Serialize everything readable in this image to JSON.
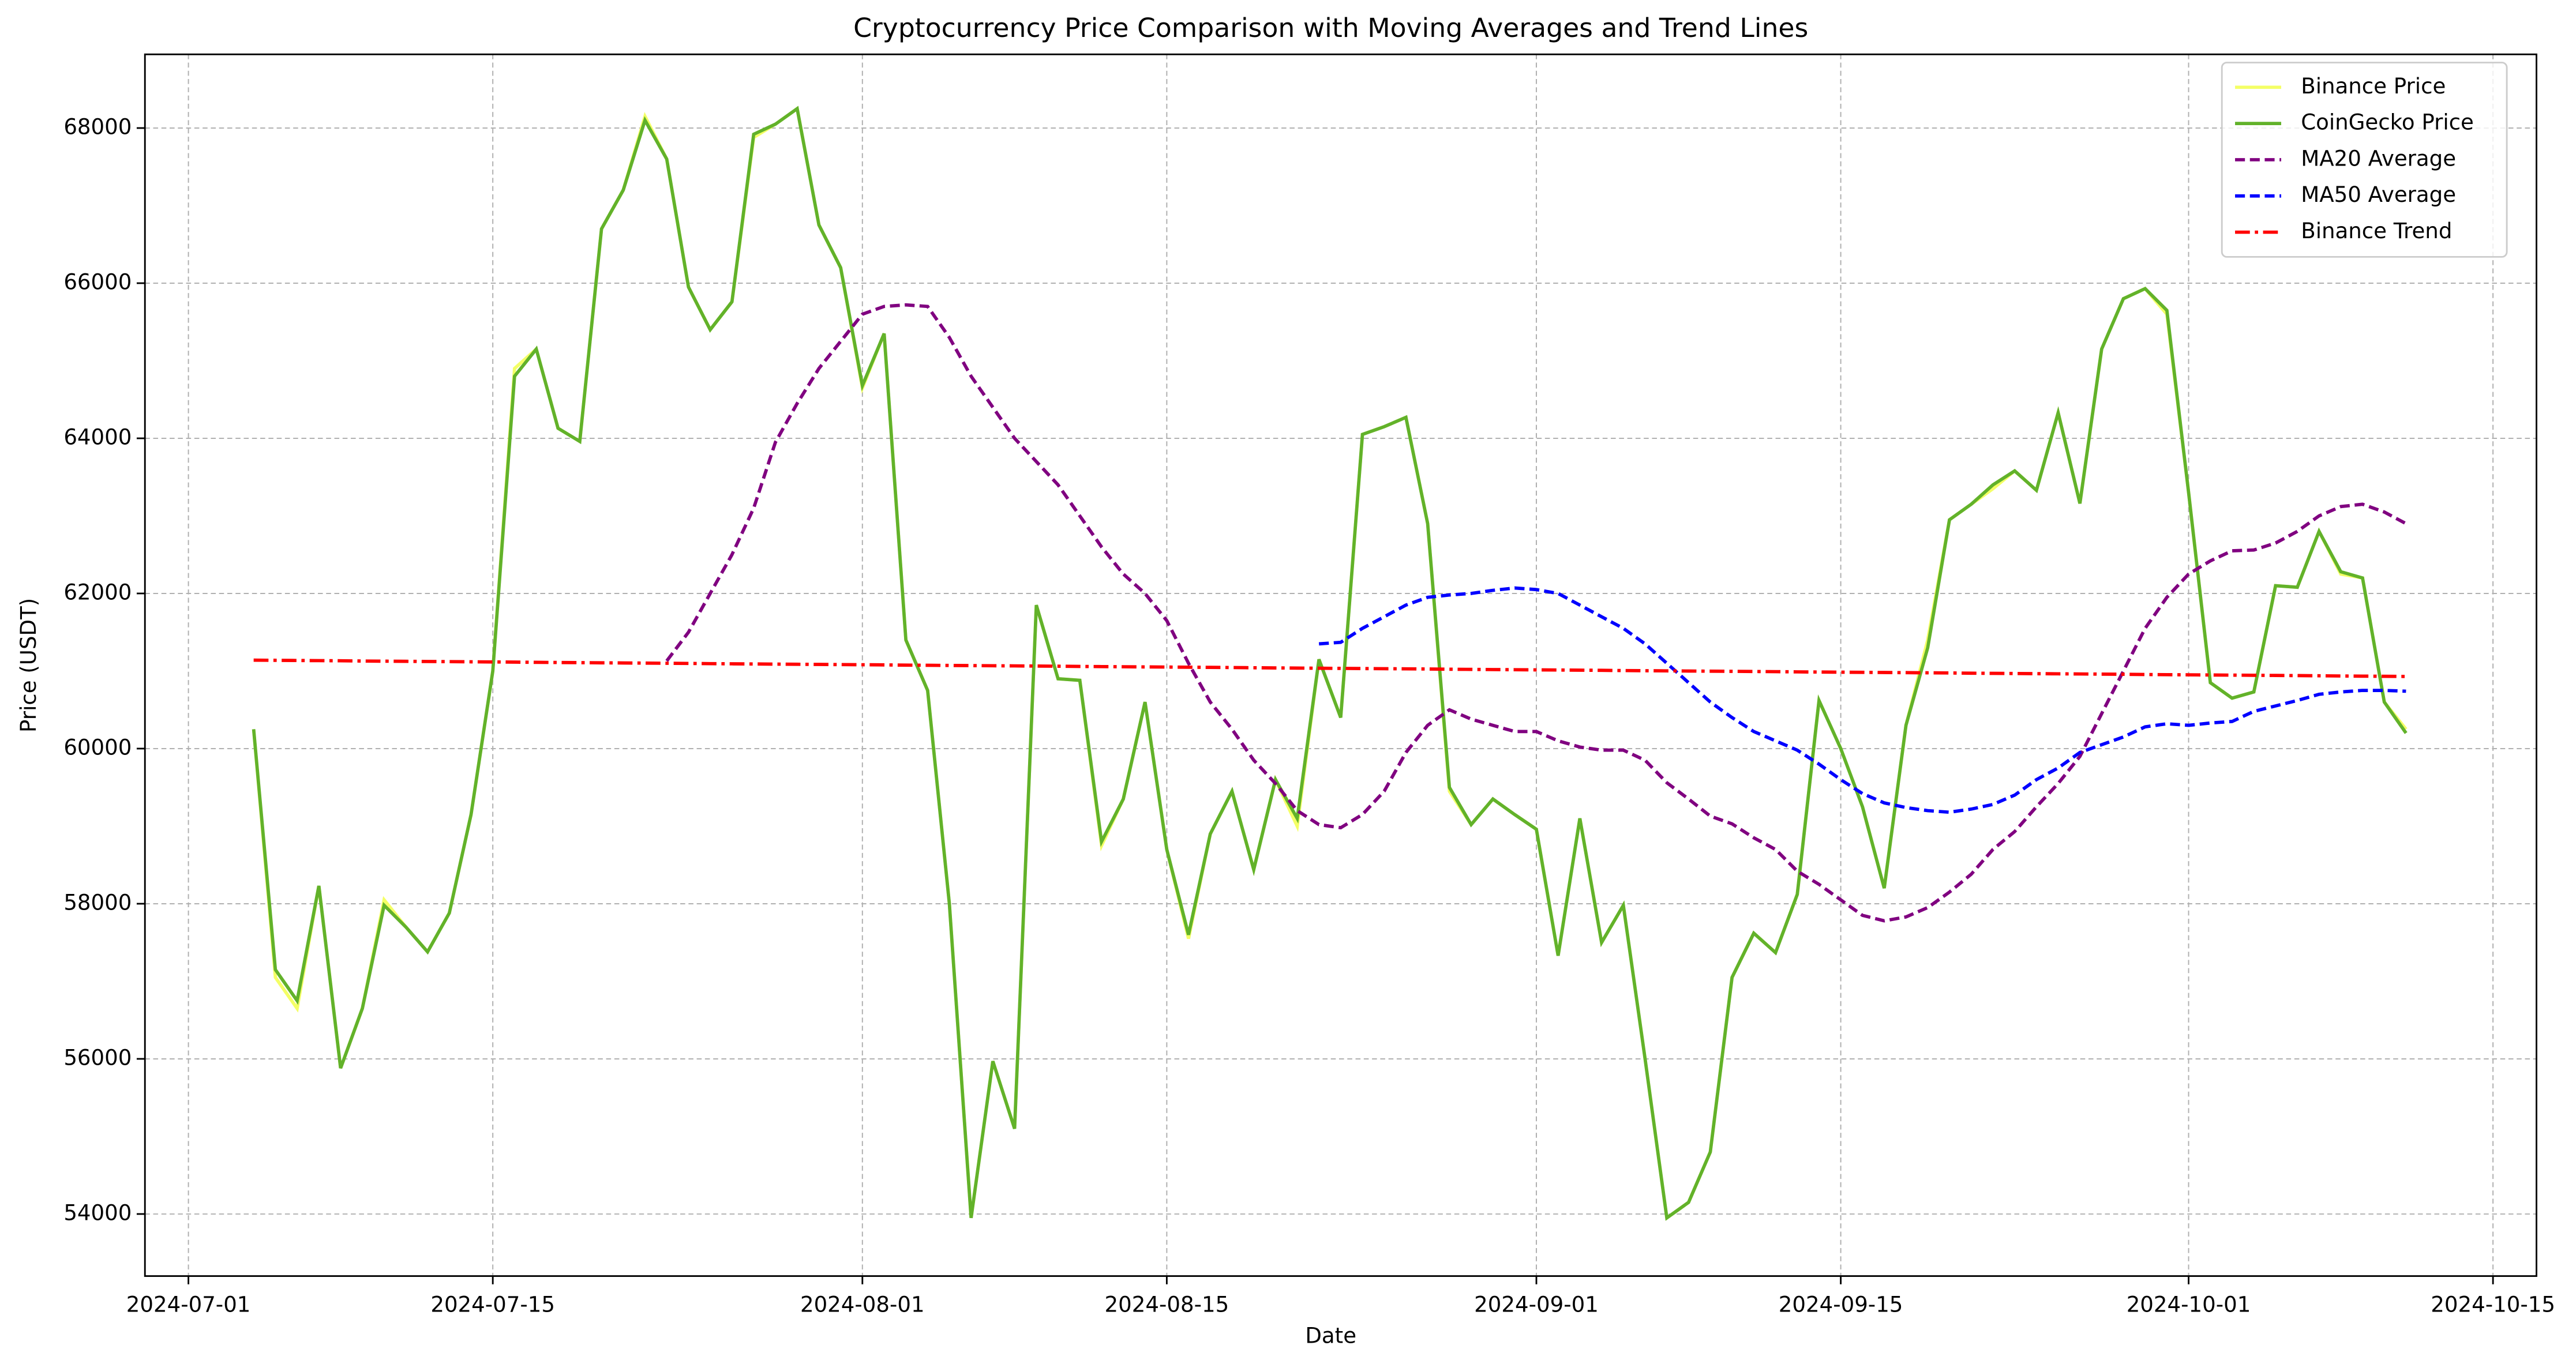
{
  "chart_data": {
    "type": "line",
    "title": "Cryptocurrency Price Comparison with Moving Averages and Trend Lines",
    "xlabel": "Date",
    "ylabel": "Price (USDT)",
    "x": [
      "2024-07-04",
      "2024-07-05",
      "2024-07-06",
      "2024-07-07",
      "2024-07-08",
      "2024-07-09",
      "2024-07-10",
      "2024-07-11",
      "2024-07-12",
      "2024-07-13",
      "2024-07-14",
      "2024-07-15",
      "2024-07-16",
      "2024-07-17",
      "2024-07-18",
      "2024-07-19",
      "2024-07-20",
      "2024-07-21",
      "2024-07-22",
      "2024-07-23",
      "2024-07-24",
      "2024-07-25",
      "2024-07-26",
      "2024-07-27",
      "2024-07-28",
      "2024-07-29",
      "2024-07-30",
      "2024-07-31",
      "2024-08-01",
      "2024-08-02",
      "2024-08-03",
      "2024-08-04",
      "2024-08-05",
      "2024-08-06",
      "2024-08-07",
      "2024-08-08",
      "2024-08-09",
      "2024-08-10",
      "2024-08-11",
      "2024-08-12",
      "2024-08-13",
      "2024-08-14",
      "2024-08-15",
      "2024-08-16",
      "2024-08-17",
      "2024-08-18",
      "2024-08-19",
      "2024-08-20",
      "2024-08-21",
      "2024-08-22",
      "2024-08-23",
      "2024-08-24",
      "2024-08-25",
      "2024-08-26",
      "2024-08-27",
      "2024-08-28",
      "2024-08-29",
      "2024-08-30",
      "2024-08-31",
      "2024-09-01",
      "2024-09-02",
      "2024-09-03",
      "2024-09-04",
      "2024-09-05",
      "2024-09-06",
      "2024-09-07",
      "2024-09-08",
      "2024-09-09",
      "2024-09-10",
      "2024-09-11",
      "2024-09-12",
      "2024-09-13",
      "2024-09-14",
      "2024-09-15",
      "2024-09-16",
      "2024-09-17",
      "2024-09-18",
      "2024-09-19",
      "2024-09-20",
      "2024-09-21",
      "2024-09-22",
      "2024-09-23",
      "2024-09-24",
      "2024-09-25",
      "2024-09-26",
      "2024-09-27",
      "2024-09-28",
      "2024-09-29",
      "2024-09-30",
      "2024-10-01",
      "2024-10-02",
      "2024-10-03",
      "2024-10-04",
      "2024-10-05",
      "2024-10-06",
      "2024-10-07",
      "2024-10-08",
      "2024-10-09",
      "2024-10-10",
      "2024-10-11"
    ],
    "series": [
      {
        "name": "Binance Price",
        "color": "#f4ff66",
        "dash": "solid",
        "values": [
          60250,
          57050,
          56650,
          58230,
          55880,
          56650,
          58050,
          57700,
          57380,
          57880,
          59150,
          61000,
          64900,
          65150,
          64130,
          63960,
          66700,
          67200,
          68150,
          67600,
          65950,
          65400,
          65760,
          67880,
          68050,
          68250,
          66750,
          66200,
          64650,
          65350,
          61400,
          60750,
          58000,
          53950,
          55970,
          55100,
          61850,
          60900,
          60880,
          58750,
          59350,
          60600,
          58700,
          57550,
          58900,
          59450,
          58440,
          59600,
          59000,
          61150,
          60400,
          64050,
          64150,
          64270,
          62900,
          59450,
          59020,
          59350,
          59150,
          58960,
          57330,
          59100,
          57500,
          57980,
          56000,
          53950,
          54150,
          54800,
          57050,
          57620,
          57370,
          58120,
          60620,
          60000,
          59250,
          58200,
          60300,
          61400,
          62950,
          63150,
          63350,
          63580,
          63330,
          64330,
          63160,
          65150,
          65800,
          65930,
          65600,
          63300,
          60850,
          60650,
          60730,
          62100,
          62080,
          62800,
          62250,
          62200,
          60600,
          60250
        ]
      },
      {
        "name": "CoinGecko Price",
        "color": "#62b22a",
        "dash": "solid",
        "values": [
          60250,
          57150,
          56750,
          58230,
          55880,
          56650,
          57980,
          57700,
          57380,
          57880,
          59150,
          61000,
          64800,
          65150,
          64130,
          63960,
          66700,
          67200,
          68100,
          67600,
          65950,
          65400,
          65760,
          67920,
          68050,
          68250,
          66750,
          66200,
          64680,
          65350,
          61400,
          60750,
          58000,
          53950,
          55970,
          55100,
          61850,
          60900,
          60880,
          58800,
          59350,
          60600,
          58700,
          57600,
          58900,
          59450,
          58440,
          59600,
          59100,
          61150,
          60400,
          64050,
          64150,
          64270,
          62900,
          59500,
          59020,
          59350,
          59150,
          58960,
          57330,
          59100,
          57500,
          57980,
          56000,
          53950,
          54150,
          54800,
          57050,
          57620,
          57370,
          58120,
          60620,
          60000,
          59250,
          58200,
          60300,
          61300,
          62950,
          63150,
          63400,
          63580,
          63330,
          64330,
          63160,
          65150,
          65800,
          65930,
          65650,
          63300,
          60850,
          60650,
          60730,
          62100,
          62080,
          62800,
          62280,
          62200,
          60600,
          60200
        ]
      },
      {
        "name": "MA20 Average",
        "color": "#800080",
        "dash": "dashed",
        "values": [
          null,
          null,
          null,
          null,
          null,
          null,
          null,
          null,
          null,
          null,
          null,
          null,
          null,
          null,
          null,
          null,
          null,
          null,
          null,
          61130,
          61500,
          62000,
          62500,
          63100,
          63950,
          64450,
          64900,
          65250,
          65600,
          65700,
          65720,
          65700,
          65300,
          64800,
          64400,
          64000,
          63700,
          63400,
          63000,
          62600,
          62250,
          62000,
          61650,
          61100,
          60600,
          60250,
          59850,
          59550,
          59200,
          59020,
          58980,
          59150,
          59450,
          59950,
          60300,
          60500,
          60380,
          60300,
          60220,
          60220,
          60100,
          60020,
          59980,
          59980,
          59850,
          59560,
          59350,
          59130,
          59030,
          58850,
          58700,
          58420,
          58250,
          58050,
          57850,
          57780,
          57830,
          57950,
          58150,
          58380,
          58700,
          58930,
          59250,
          59550,
          59900,
          60450,
          61000,
          61550,
          61950,
          62250,
          62420,
          62550,
          62560,
          62650,
          62800,
          63000,
          63120,
          63150,
          63050,
          62900
        ]
      },
      {
        "name": "MA50 Average",
        "color": "#0000ff",
        "dash": "dashed",
        "values": [
          null,
          null,
          null,
          null,
          null,
          null,
          null,
          null,
          null,
          null,
          null,
          null,
          null,
          null,
          null,
          null,
          null,
          null,
          null,
          null,
          null,
          null,
          null,
          null,
          null,
          null,
          null,
          null,
          null,
          null,
          null,
          null,
          null,
          null,
          null,
          null,
          null,
          null,
          null,
          null,
          null,
          null,
          null,
          null,
          null,
          null,
          null,
          null,
          null,
          61350,
          61370,
          61550,
          61700,
          61850,
          61950,
          61980,
          62000,
          62040,
          62070,
          62050,
          62000,
          61850,
          61700,
          61550,
          61350,
          61100,
          60850,
          60600,
          60400,
          60220,
          60100,
          59980,
          59800,
          59600,
          59420,
          59300,
          59240,
          59200,
          59180,
          59220,
          59280,
          59400,
          59600,
          59750,
          59950,
          60050,
          60150,
          60280,
          60320,
          60300,
          60330,
          60350,
          60480,
          60550,
          60620,
          60700,
          60730,
          60750,
          60750,
          60740
        ]
      },
      {
        "name": "Binance Trend",
        "color": "#ff0000",
        "dash": "dashdot",
        "values": [
          61140,
          61138,
          61136,
          61134,
          61132,
          61129,
          61127,
          61125,
          61123,
          61121,
          61119,
          61117,
          61115,
          61112,
          61110,
          61108,
          61106,
          61104,
          61102,
          61100,
          61098,
          61095,
          61093,
          61091,
          61089,
          61087,
          61085,
          61083,
          61081,
          61079,
          61076,
          61074,
          61072,
          61070,
          61068,
          61066,
          61064,
          61062,
          61059,
          61057,
          61055,
          61053,
          61051,
          61049,
          61047,
          61045,
          61042,
          61040,
          61038,
          61036,
          61034,
          61032,
          61030,
          61028,
          61026,
          61023,
          61021,
          61019,
          61017,
          61015,
          61013,
          61011,
          61009,
          61006,
          61004,
          61002,
          61000,
          60998,
          60996,
          60994,
          60992,
          60989,
          60987,
          60985,
          60983,
          60981,
          60979,
          60977,
          60975,
          60972,
          60970,
          60968,
          60966,
          60964,
          60962,
          60960,
          60958,
          60955,
          60953,
          60951,
          60949,
          60947,
          60945,
          60943,
          60941,
          60939,
          60936,
          60934,
          60932,
          60930
        ]
      }
    ],
    "xlim": [
      "2024-06-29",
      "2024-10-17"
    ],
    "xticks": [
      "2024-07-01",
      "2024-07-15",
      "2024-08-01",
      "2024-08-15",
      "2024-09-01",
      "2024-09-15",
      "2024-10-01",
      "2024-10-15"
    ],
    "ylim": [
      53200,
      68950
    ],
    "yticks": [
      54000,
      56000,
      58000,
      60000,
      62000,
      64000,
      66000,
      68000
    ],
    "grid": true,
    "legend": "upper right"
  }
}
